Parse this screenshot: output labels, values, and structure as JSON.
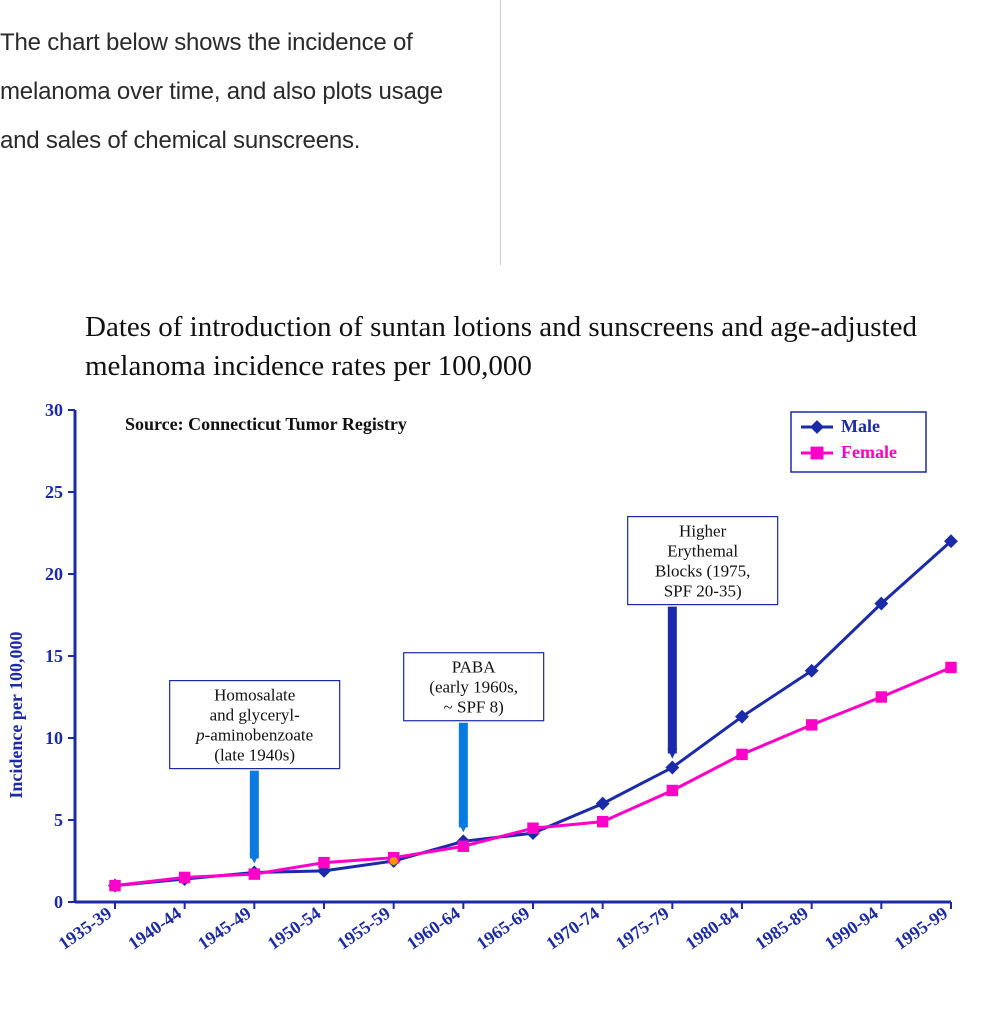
{
  "intro_text": "The chart below shows the incidence of melanoma over time, and also plots usage and sales of chemical sunscreens.",
  "chart": {
    "type": "line",
    "title": "Dates of introduction of suntan lotions and sunscreens and age-adjusted melanoma incidence rates per 100,000",
    "title_fontfamily": "Times New Roman",
    "title_fontsize": 29,
    "title_color": "#111111",
    "source_label": "Source: Connecticut Tumor Registry",
    "source_fontsize": 18,
    "ylabel": "Incidence per 100,000",
    "ylabel_fontsize": 18,
    "ylabel_color": "#1a2aa8",
    "axis_color": "#1a2aa8",
    "axis_width": 3,
    "tick_font_color": "#1a2aa8",
    "tick_fontsize": 18,
    "ylim": [
      0,
      30
    ],
    "ytick_step": 5,
    "yticks": [
      0,
      5,
      10,
      15,
      20,
      25,
      30
    ],
    "xlabels": [
      "1935-39",
      "1940-44",
      "1945-49",
      "1950-54",
      "1955-59",
      "1960-64",
      "1965-69",
      "1970-74",
      "1975-79",
      "1980-84",
      "1985-89",
      "1990-94",
      "1995-99"
    ],
    "xlabel_rotation_deg": 35,
    "series": [
      {
        "name": "Male",
        "color": "#1a2aa8",
        "marker": "diamond",
        "marker_size": 9,
        "line_width": 3,
        "values": [
          1.0,
          1.4,
          1.8,
          1.9,
          2.5,
          3.7,
          4.2,
          6.0,
          8.2,
          11.3,
          14.1,
          18.2,
          22.0
        ]
      },
      {
        "name": "Female",
        "color": "#ff00c8",
        "marker": "square",
        "marker_size": 8,
        "line_width": 3,
        "values": [
          1.0,
          1.5,
          1.7,
          2.4,
          2.7,
          3.4,
          4.5,
          4.9,
          6.8,
          9.0,
          10.8,
          12.5,
          14.3
        ]
      }
    ],
    "legend": {
      "position": "top-right",
      "border_color": "#1a2aa8",
      "background": "#ffffff",
      "items": [
        {
          "label": "Male",
          "color": "#1a2aa8",
          "marker": "diamond"
        },
        {
          "label": "Female",
          "color": "#ff00c8",
          "marker": "square"
        }
      ]
    },
    "annotations": [
      {
        "id": "homosalate",
        "lines": [
          "Homosalate",
          "and glyceryl-",
          "p-aminobenzoate",
          "(late 1940s)"
        ],
        "italic_line_index": 2,
        "box_border": "#1a2aa8",
        "arrow_color": "#0a7ae0",
        "target_x_index": 2
      },
      {
        "id": "paba",
        "lines": [
          "PABA",
          "(early 1960s,",
          "~ SPF 8)"
        ],
        "box_border": "#1a2aa8",
        "arrow_color": "#0a7ae0",
        "target_x_index": 5
      },
      {
        "id": "higher-blocks",
        "lines": [
          "Higher",
          "Erythemal",
          "Blocks (1975,",
          "SPF 20-35)"
        ],
        "box_border": "#1a2aa8",
        "arrow_color": "#1a2aa8",
        "target_x_index": 8
      }
    ],
    "extra_marker": {
      "x_index": 4,
      "y": 2.5,
      "color": "#ff9900",
      "size": 8
    },
    "background_color": "#ffffff"
  }
}
